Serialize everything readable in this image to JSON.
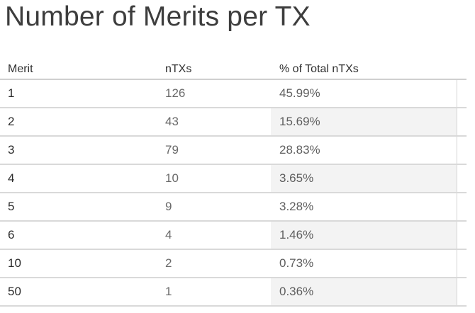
{
  "title": "Number of Merits per TX",
  "table": {
    "columns": [
      "Merit",
      "nTXs",
      "% of Total nTXs"
    ],
    "rows": [
      {
        "merit": "1",
        "ntxs": "126",
        "pct": "45.99%"
      },
      {
        "merit": "2",
        "ntxs": "43",
        "pct": "15.69%"
      },
      {
        "merit": "3",
        "ntxs": "79",
        "pct": "28.83%"
      },
      {
        "merit": "4",
        "ntxs": "10",
        "pct": "3.65%"
      },
      {
        "merit": "5",
        "ntxs": "9",
        "pct": "3.28%"
      },
      {
        "merit": "6",
        "ntxs": "4",
        "pct": "1.46%"
      },
      {
        "merit": "10",
        "ntxs": "2",
        "pct": "0.73%"
      },
      {
        "merit": "50",
        "ntxs": "1",
        "pct": "0.36%"
      }
    ]
  },
  "colors": {
    "alt_row_band": "#f3f3f3",
    "grid_line": "#d9d9d9"
  }
}
